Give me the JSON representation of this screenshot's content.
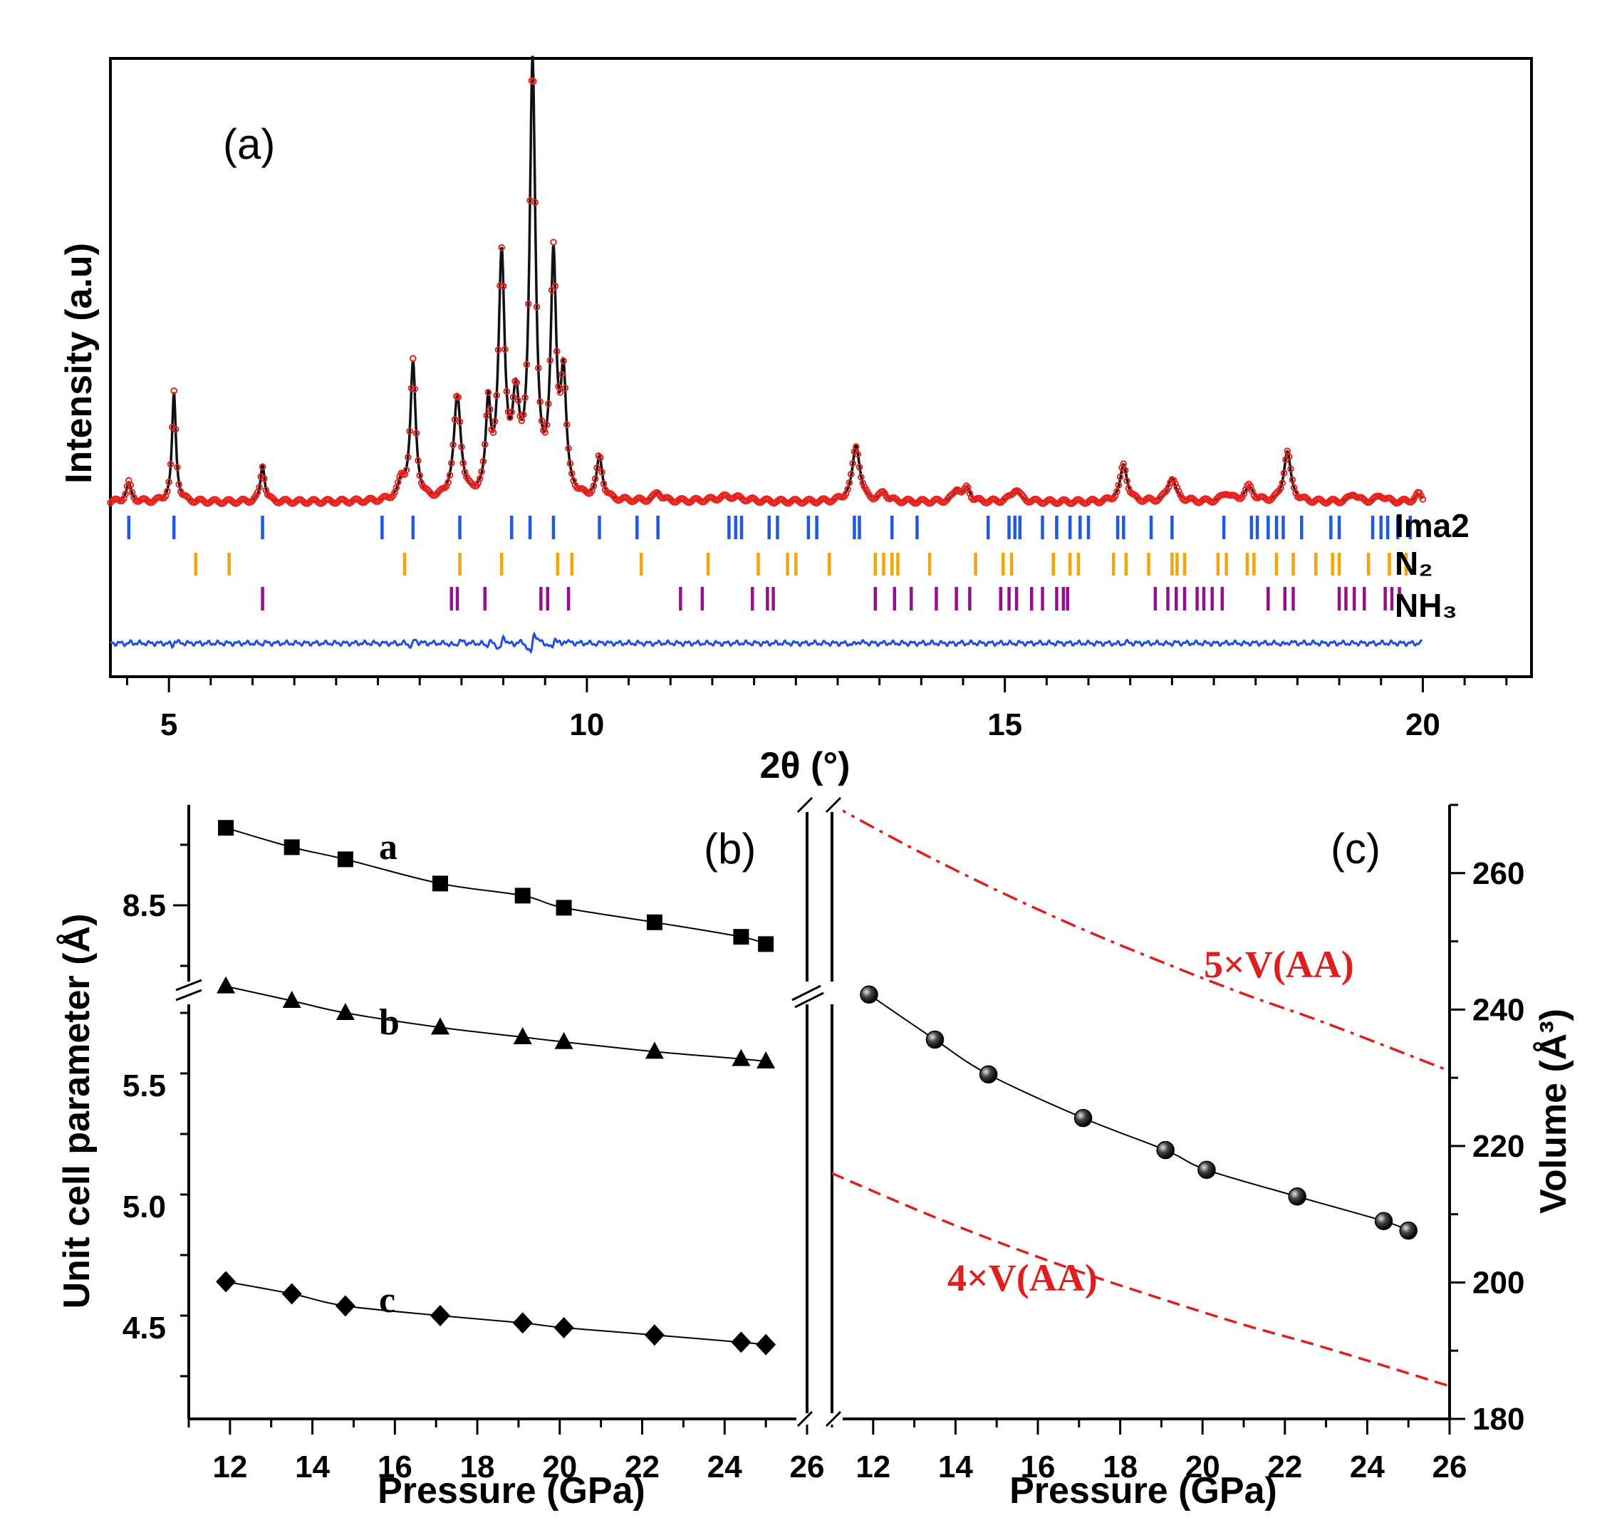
{
  "chart_data": [
    {
      "panel": "a",
      "type": "line",
      "panel_label": "(a)",
      "xlabel": "2θ (°)",
      "ylabel": "Intensity (a.u)",
      "xlim": [
        4.3,
        21.3
      ],
      "xticks": [
        5,
        10,
        15,
        20
      ],
      "colors": {
        "observed": "#e8231e",
        "calculated": "#111111",
        "difference": "#1f4fe0"
      },
      "peaks": [
        {
          "x": 4.52,
          "h": 0.045,
          "w": 0.035
        },
        {
          "x": 5.06,
          "h": 0.255,
          "w": 0.028
        },
        {
          "x": 6.12,
          "h": 0.085,
          "w": 0.03
        },
        {
          "x": 7.78,
          "h": 0.04,
          "w": 0.05
        },
        {
          "x": 7.92,
          "h": 0.32,
          "w": 0.038
        },
        {
          "x": 8.45,
          "h": 0.24,
          "w": 0.05
        },
        {
          "x": 8.82,
          "h": 0.2,
          "w": 0.035
        },
        {
          "x": 8.98,
          "h": 0.55,
          "w": 0.045
        },
        {
          "x": 9.15,
          "h": 0.2,
          "w": 0.05
        },
        {
          "x": 9.35,
          "h": 1.0,
          "w": 0.042
        },
        {
          "x": 9.6,
          "h": 0.54,
          "w": 0.04
        },
        {
          "x": 9.72,
          "h": 0.26,
          "w": 0.04
        },
        {
          "x": 10.15,
          "h": 0.1,
          "w": 0.04
        },
        {
          "x": 10.85,
          "h": 0.02,
          "w": 0.05
        },
        {
          "x": 11.7,
          "h": 0.012,
          "w": 0.2
        },
        {
          "x": 13.22,
          "h": 0.13,
          "w": 0.055
        },
        {
          "x": 13.55,
          "h": 0.02,
          "w": 0.05
        },
        {
          "x": 14.43,
          "h": 0.03,
          "w": 0.05
        },
        {
          "x": 14.55,
          "h": 0.03,
          "w": 0.04
        },
        {
          "x": 15.13,
          "h": 0.03,
          "w": 0.06
        },
        {
          "x": 16.42,
          "h": 0.087,
          "w": 0.05
        },
        {
          "x": 17.0,
          "h": 0.055,
          "w": 0.06
        },
        {
          "x": 17.65,
          "h": 0.02,
          "w": 0.06
        },
        {
          "x": 17.92,
          "h": 0.035,
          "w": 0.06
        },
        {
          "x": 18.38,
          "h": 0.117,
          "w": 0.05
        },
        {
          "x": 19.17,
          "h": 0.02,
          "w": 0.05
        },
        {
          "x": 19.5,
          "h": 0.015,
          "w": 0.06
        },
        {
          "x": 19.95,
          "h": 0.018,
          "w": 0.05
        }
      ],
      "reflection_series": [
        {
          "name": "Ima2",
          "color": "#1f5ae0",
          "positions": [
            4.52,
            5.06,
            6.12,
            7.55,
            7.92,
            8.48,
            9.1,
            9.32,
            9.6,
            10.15,
            10.6,
            10.85,
            11.7,
            11.78,
            11.85,
            12.18,
            12.28,
            12.65,
            12.75,
            13.2,
            13.26,
            13.65,
            13.95,
            14.8,
            15.05,
            15.12,
            15.18,
            15.45,
            15.62,
            15.78,
            15.9,
            16.0,
            16.35,
            16.42,
            16.75,
            17.0,
            17.62,
            17.95,
            18.02,
            18.15,
            18.25,
            18.33,
            18.55,
            18.9,
            19.0,
            19.4,
            19.5,
            19.58,
            19.7,
            19.85
          ]
        },
        {
          "name": "N₂",
          "color": "#f5a40b",
          "positions": [
            5.32,
            5.72,
            7.82,
            8.48,
            8.98,
            9.65,
            9.82,
            10.65,
            11.45,
            12.05,
            12.4,
            12.5,
            12.9,
            13.45,
            13.55,
            13.65,
            13.72,
            14.1,
            14.65,
            14.98,
            15.08,
            15.58,
            15.78,
            15.88,
            16.3,
            16.45,
            16.72,
            17.0,
            17.06,
            17.15,
            17.55,
            17.65,
            17.9,
            17.98,
            18.25,
            18.45,
            18.72,
            18.92,
            19.0,
            19.35,
            19.6,
            19.8
          ]
        },
        {
          "name": "NH₃",
          "color": "#951090",
          "positions": [
            6.12,
            8.38,
            8.45,
            8.78,
            9.45,
            9.53,
            9.78,
            11.12,
            11.38,
            11.98,
            12.16,
            12.23,
            13.45,
            13.68,
            13.88,
            14.18,
            14.42,
            14.58,
            14.95,
            15.05,
            15.14,
            15.32,
            15.45,
            15.62,
            15.7,
            15.75,
            16.8,
            16.95,
            17.05,
            17.15,
            17.3,
            17.38,
            17.48,
            17.6,
            18.15,
            18.35,
            18.45,
            19.0,
            19.08,
            19.18,
            19.3,
            19.55,
            19.63,
            19.72
          ]
        }
      ]
    },
    {
      "panel": "b",
      "type": "line",
      "panel_label": "(b)",
      "xlabel": "Pressure (GPa)",
      "ylabel": "Unit cell parameter (Å)",
      "xlim": [
        11,
        26
      ],
      "xticks": [
        12,
        14,
        16,
        18,
        20,
        22,
        24,
        26
      ],
      "yticks_lower": [
        4.5,
        5.0,
        5.5
      ],
      "yticks_upper": [
        8.5
      ],
      "x": [
        11.9,
        13.5,
        14.8,
        17.1,
        19.1,
        20.1,
        22.3,
        24.4,
        25.0
      ],
      "series": [
        {
          "name": "a",
          "label": "a",
          "marker": "square",
          "values": [
            8.82,
            8.74,
            8.69,
            8.59,
            8.54,
            8.49,
            8.43,
            8.37,
            8.34
          ]
        },
        {
          "name": "b",
          "label": "b",
          "marker": "triangle",
          "values": [
            5.91,
            5.85,
            5.8,
            5.74,
            5.7,
            5.68,
            5.64,
            5.61,
            5.6
          ]
        },
        {
          "name": "c",
          "label": "c",
          "marker": "diamond",
          "values": [
            4.69,
            4.64,
            4.59,
            4.55,
            4.52,
            4.5,
            4.47,
            4.44,
            4.43
          ]
        }
      ]
    },
    {
      "panel": "c",
      "type": "line",
      "panel_label": "(c)",
      "xlabel": "Pressure (GPa)",
      "ylabel": "Volume (Å³)",
      "xlim": [
        11,
        26
      ],
      "ylim": [
        180,
        270
      ],
      "xticks": [
        12,
        14,
        16,
        18,
        20,
        22,
        24,
        26
      ],
      "yticks": [
        180,
        200,
        220,
        240,
        260
      ],
      "x": [
        11.9,
        13.5,
        14.8,
        17.1,
        19.1,
        20.1,
        22.3,
        24.4,
        25.0
      ],
      "series": [
        {
          "name": "Volume",
          "marker": "sphere",
          "values": [
            242.2,
            235.6,
            230.5,
            224.1,
            219.4,
            216.5,
            212.6,
            209.0,
            207.6
          ]
        }
      ],
      "reference_curves": [
        {
          "name": "5×V(AA)",
          "label": "5×V(AA)",
          "style": "dash-dot",
          "color": "#e01e1e",
          "x": [
            11,
            13,
            15,
            17,
            19,
            21,
            23,
            26
          ],
          "values": [
            270.0,
            263.5,
            257.5,
            252.0,
            247.0,
            242.3,
            238.0,
            231.0
          ]
        },
        {
          "name": "4×V(AA)",
          "label": "4×V(AA)",
          "style": "dashed",
          "color": "#e01e1e",
          "x": [
            11,
            13,
            15,
            17,
            19,
            21,
            23,
            26
          ],
          "values": [
            216.0,
            210.8,
            206.0,
            201.6,
            197.6,
            193.8,
            190.4,
            184.8
          ]
        }
      ]
    }
  ]
}
